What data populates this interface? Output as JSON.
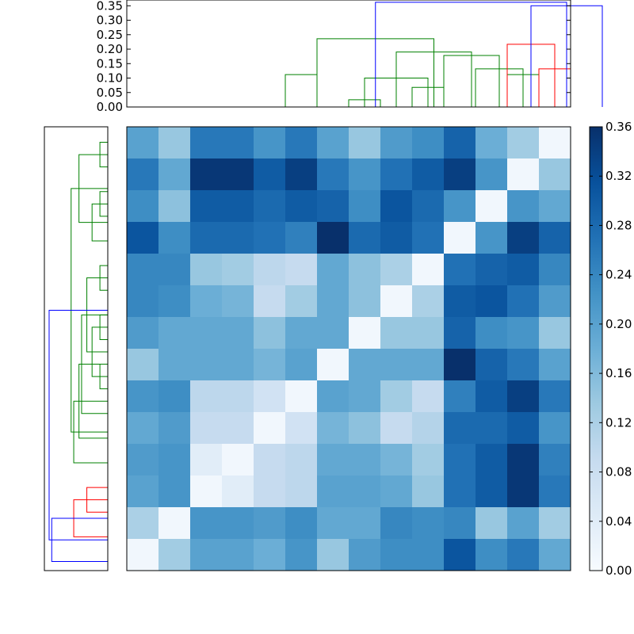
{
  "colors": {
    "dendro_low": "#008000",
    "dendro_mid": "#ff0000",
    "dendro_high": "#0000ff",
    "cmap_stops": [
      "#f7fbff",
      "#deebf7",
      "#c6dbef",
      "#9ecae1",
      "#6baed6",
      "#4292c6",
      "#2171b5",
      "#08519c",
      "#08306b"
    ]
  },
  "chart_data": [
    {
      "type": "dendrogram",
      "orientation": "top",
      "ylim": [
        0,
        0.37
      ],
      "yticks": [
        0.0,
        0.05,
        0.1,
        0.15,
        0.2,
        0.25,
        0.3,
        0.35
      ],
      "ytick_labels": [
        "0.00",
        "0.05",
        "0.10",
        "0.15",
        "0.20",
        "0.25",
        "0.30",
        "0.35"
      ],
      "leaf_count": 14,
      "links": [
        {
          "a": 7,
          "b": 8,
          "h": 0.025,
          "c": "g"
        },
        {
          "a": 9,
          "b": 10,
          "h": 0.068,
          "c": "g"
        },
        {
          "a": 5,
          "b": 6,
          "h": 0.112,
          "c": "g"
        },
        {
          "a": 12,
          "b": 13,
          "h": 0.112,
          "c": "g"
        },
        {
          "a": 13,
          "b": 14,
          "h": 0.132,
          "c": "r"
        },
        {
          "a": 11,
          "b": 12.5,
          "h": 0.132,
          "c": "g"
        },
        {
          "a": 7.5,
          "b": 9.5,
          "h": 0.1,
          "c": "g"
        },
        {
          "a": 10,
          "b": 11.75,
          "h": 0.178,
          "c": "g"
        },
        {
          "a": 8.5,
          "b": 10.875,
          "h": 0.19,
          "c": "g"
        },
        {
          "a": 12,
          "b": 13.5,
          "h": 0.217,
          "c": "r"
        },
        {
          "a": 6,
          "b": 9.6875,
          "h": 0.236,
          "c": "g"
        },
        {
          "a": 12.75,
          "b": 15,
          "h": 0.35,
          "c": "b"
        },
        {
          "a": 7.84375,
          "b": 13.875,
          "h": 0.362,
          "c": "b"
        }
      ]
    },
    {
      "type": "dendrogram",
      "orientation": "left",
      "leaf_count": 14,
      "links": [
        {
          "a": 0.5,
          "b": 1.5,
          "h": 0.015,
          "c": "g"
        },
        {
          "a": 2.5,
          "b": 3.5,
          "h": 0.015,
          "c": "g"
        },
        {
          "a": 3,
          "b": 4.5,
          "h": 0.03,
          "c": "g"
        },
        {
          "a": 1,
          "b": 3.75,
          "h": 0.055,
          "c": "g"
        },
        {
          "a": 5.5,
          "b": 6.5,
          "h": 0.015,
          "c": "g"
        },
        {
          "a": 7.5,
          "b": 8.5,
          "h": 0.015,
          "c": "g"
        },
        {
          "a": 9.5,
          "b": 10.5,
          "h": 0.015,
          "c": "g"
        },
        {
          "a": 8,
          "b": 10,
          "h": 0.03,
          "c": "g"
        },
        {
          "a": 6,
          "b": 9,
          "h": 0.04,
          "c": "g"
        },
        {
          "a": 7.5,
          "b": 11.5,
          "h": 0.05,
          "c": "g"
        },
        {
          "a": 9.5,
          "b": 12.5,
          "h": 0.055,
          "c": "g"
        },
        {
          "a": 11,
          "b": 13.5,
          "h": 0.065,
          "c": "g"
        },
        {
          "a": 2.375,
          "b": 12.25,
          "h": 0.07,
          "c": "g"
        },
        {
          "a": 14.5,
          "b": 15.5,
          "h": 0.04,
          "c": "r"
        },
        {
          "a": 15,
          "b": 16.5,
          "h": 0.065,
          "c": "r"
        },
        {
          "a": 15.75,
          "b": 17.5,
          "h": 0.107,
          "c": "b"
        },
        {
          "a": 7.3125,
          "b": 16.625,
          "h": 0.112,
          "c": "b"
        }
      ]
    },
    {
      "type": "heatmap",
      "rows": 14,
      "cols": 14,
      "vmin": 0.0,
      "vmax": 0.36,
      "values": [
        [
          0.2,
          0.14,
          0.26,
          0.26,
          0.22,
          0.26,
          0.2,
          0.14,
          0.21,
          0.23,
          0.29,
          0.18,
          0.13,
          0.01
        ],
        [
          0.26,
          0.19,
          0.35,
          0.35,
          0.3,
          0.34,
          0.26,
          0.22,
          0.27,
          0.3,
          0.34,
          0.22,
          0.01,
          0.14
        ],
        [
          0.23,
          0.15,
          0.3,
          0.3,
          0.28,
          0.3,
          0.29,
          0.23,
          0.31,
          0.28,
          0.22,
          0.01,
          0.22,
          0.19
        ],
        [
          0.31,
          0.23,
          0.28,
          0.28,
          0.27,
          0.25,
          0.36,
          0.28,
          0.3,
          0.27,
          0.01,
          0.22,
          0.34,
          0.29
        ],
        [
          0.24,
          0.24,
          0.14,
          0.13,
          0.1,
          0.09,
          0.19,
          0.15,
          0.12,
          0.01,
          0.27,
          0.29,
          0.3,
          0.24
        ],
        [
          0.24,
          0.23,
          0.18,
          0.17,
          0.09,
          0.13,
          0.19,
          0.15,
          0.01,
          0.12,
          0.3,
          0.31,
          0.27,
          0.21
        ],
        [
          0.21,
          0.19,
          0.19,
          0.19,
          0.15,
          0.19,
          0.19,
          0.01,
          0.14,
          0.14,
          0.29,
          0.23,
          0.22,
          0.14
        ],
        [
          0.14,
          0.19,
          0.19,
          0.19,
          0.17,
          0.2,
          0.01,
          0.19,
          0.19,
          0.19,
          0.36,
          0.29,
          0.26,
          0.2
        ],
        [
          0.22,
          0.23,
          0.1,
          0.1,
          0.07,
          0.01,
          0.2,
          0.19,
          0.13,
          0.09,
          0.25,
          0.3,
          0.34,
          0.26
        ],
        [
          0.19,
          0.21,
          0.09,
          0.09,
          0.01,
          0.07,
          0.17,
          0.15,
          0.09,
          0.11,
          0.28,
          0.28,
          0.3,
          0.22
        ],
        [
          0.21,
          0.22,
          0.04,
          0.01,
          0.09,
          0.1,
          0.19,
          0.19,
          0.17,
          0.13,
          0.27,
          0.3,
          0.35,
          0.25
        ],
        [
          0.2,
          0.22,
          0.01,
          0.04,
          0.09,
          0.1,
          0.2,
          0.2,
          0.19,
          0.14,
          0.27,
          0.3,
          0.35,
          0.26
        ],
        [
          0.12,
          0.01,
          0.22,
          0.22,
          0.21,
          0.23,
          0.19,
          0.19,
          0.24,
          0.23,
          0.24,
          0.14,
          0.2,
          0.13
        ],
        [
          0.01,
          0.13,
          0.2,
          0.2,
          0.18,
          0.22,
          0.14,
          0.21,
          0.23,
          0.23,
          0.31,
          0.23,
          0.26,
          0.19
        ]
      ]
    },
    {
      "type": "colorbar",
      "vmin": 0.0,
      "vmax": 0.36,
      "ticks": [
        0.0,
        0.04,
        0.08,
        0.12,
        0.16,
        0.2,
        0.24,
        0.28,
        0.32,
        0.36
      ],
      "tick_labels": [
        "0.00",
        "0.04",
        "0.08",
        "0.12",
        "0.16",
        "0.20",
        "0.24",
        "0.28",
        "0.32",
        "0.36"
      ]
    }
  ]
}
